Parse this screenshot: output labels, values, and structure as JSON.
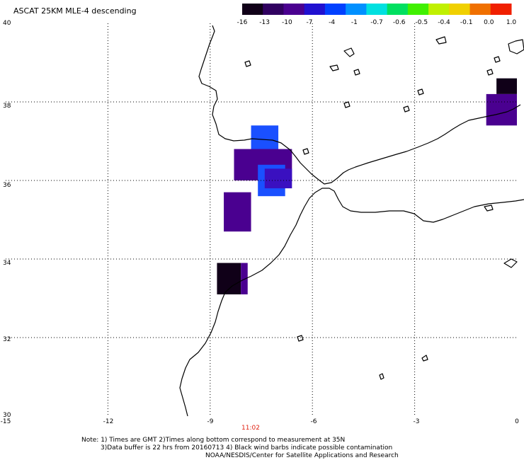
{
  "title": "ASCAT 25KM MLE-4 descending",
  "colorbar": {
    "labels": [
      "-16",
      "-13",
      "-10",
      "-7",
      "-4",
      "-1",
      "-0.7",
      "-0.6",
      "-0.5",
      "-0.4",
      "-0.1",
      "0.0",
      "1.0"
    ],
    "colors": [
      "#100018",
      "#300060",
      "#4a0090",
      "#2010d0",
      "#0040ff",
      "#0090ff",
      "#00e0e0",
      "#00e060",
      "#40f000",
      "#c0f000",
      "#f0d000",
      "#f07000",
      "#f02000"
    ]
  },
  "axes": {
    "x_ticks": [
      "-15",
      "-12",
      "-9",
      "-6",
      "-3",
      "0"
    ],
    "y_ticks": [
      "40",
      "38",
      "36",
      "34",
      "32",
      "30"
    ]
  },
  "time_label": "11:02",
  "notes": [
    "Note: 1) Times are GMT 2)Times along bottom correspond to measurement at 35N",
    "3)Data buffer is 22 hrs from 20160713 4) Black wind barbs indicate possible contamination",
    "NOAA/NESDIS/Center for Satellite Applications and Research"
  ],
  "cells": [
    {
      "lon_min": -7.8,
      "lon_max": -7.0,
      "lat_min": 36.6,
      "lat_max": 37.4,
      "color": "#1a50ff"
    },
    {
      "lon_min": -8.3,
      "lon_max": -6.6,
      "lat_min": 36.0,
      "lat_max": 36.8,
      "color": "#4a0090"
    },
    {
      "lon_min": -7.6,
      "lon_max": -6.8,
      "lat_min": 35.6,
      "lat_max": 36.4,
      "color": "#1a50ff"
    },
    {
      "lon_min": -7.4,
      "lon_max": -6.6,
      "lat_min": 35.8,
      "lat_max": 36.3,
      "color": "#3a10c0"
    },
    {
      "lon_min": -8.6,
      "lon_max": -7.8,
      "lat_min": 34.7,
      "lat_max": 35.7,
      "color": "#4a0090"
    },
    {
      "lon_min": -8.8,
      "lon_max": -8.1,
      "lat_min": 33.1,
      "lat_max": 33.9,
      "color": "#100018"
    },
    {
      "lon_min": -8.1,
      "lon_max": -7.9,
      "lat_min": 33.1,
      "lat_max": 33.9,
      "color": "#4a0090"
    },
    {
      "lon_min": -0.6,
      "lon_max": 0.0,
      "lat_min": 38.2,
      "lat_max": 38.6,
      "color": "#100018"
    },
    {
      "lon_min": -0.9,
      "lon_max": 0.0,
      "lat_min": 37.4,
      "lat_max": 38.2,
      "color": "#4a0090"
    }
  ]
}
